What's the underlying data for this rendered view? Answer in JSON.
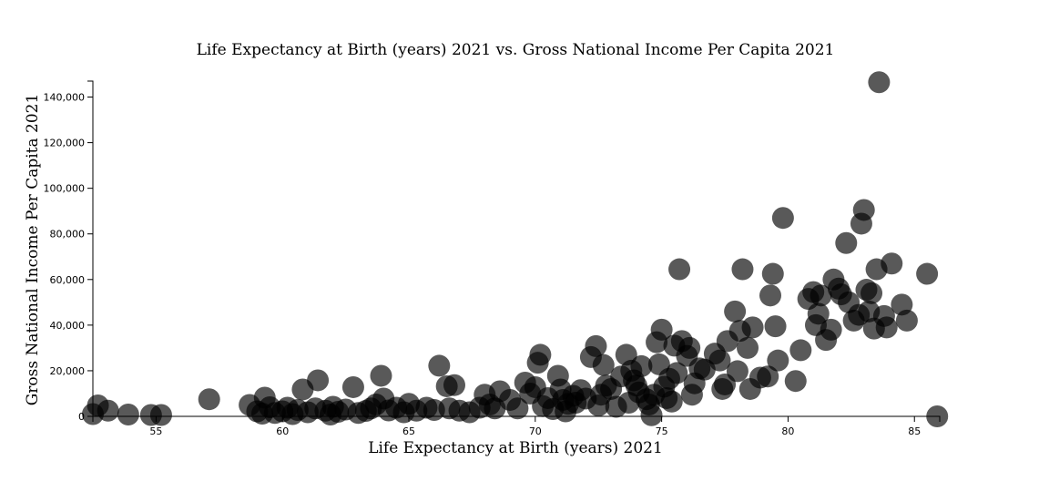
{
  "chart_data": {
    "type": "scatter",
    "title": "Life Expectancy at Birth (years) 2021 vs. Gross National Income Per Capita 2021",
    "xlabel": "Life Expectancy at Birth (years) 2021",
    "ylabel": "Gross National Income Per Capita 2021",
    "xlim": [
      52.5,
      86
    ],
    "ylim": [
      0,
      147000
    ],
    "x_ticks": [
      55,
      60,
      65,
      70,
      75,
      80,
      85
    ],
    "x_tick_labels": [
      "55",
      "60",
      "65",
      "70",
      "75",
      "80",
      "85"
    ],
    "y_ticks": [
      0,
      20000,
      40000,
      60000,
      80000,
      100000,
      120000,
      140000
    ],
    "y_tick_labels": [
      "0",
      "20,000",
      "40,000",
      "60,000",
      "80,000",
      "100,000",
      "120,000",
      "140,000"
    ],
    "grid": false,
    "marker_color": "#000000",
    "marker_opacity": 0.65,
    "points": [
      {
        "x": 52.5,
        "y": 1000
      },
      {
        "x": 52.7,
        "y": 4800
      },
      {
        "x": 53.1,
        "y": 2500
      },
      {
        "x": 53.9,
        "y": 800
      },
      {
        "x": 54.8,
        "y": 600
      },
      {
        "x": 55.2,
        "y": 600
      },
      {
        "x": 57.1,
        "y": 7500
      },
      {
        "x": 58.7,
        "y": 5000
      },
      {
        "x": 59.0,
        "y": 2200
      },
      {
        "x": 59.2,
        "y": 1200
      },
      {
        "x": 59.3,
        "y": 8200
      },
      {
        "x": 59.5,
        "y": 4000
      },
      {
        "x": 59.7,
        "y": 1500
      },
      {
        "x": 60.0,
        "y": 2200
      },
      {
        "x": 60.2,
        "y": 3800
      },
      {
        "x": 60.4,
        "y": 1000
      },
      {
        "x": 60.6,
        "y": 2800
      },
      {
        "x": 60.8,
        "y": 11800
      },
      {
        "x": 61.0,
        "y": 1800
      },
      {
        "x": 61.3,
        "y": 3500
      },
      {
        "x": 61.4,
        "y": 15800
      },
      {
        "x": 61.7,
        "y": 2500
      },
      {
        "x": 61.9,
        "y": 800
      },
      {
        "x": 62.0,
        "y": 4200
      },
      {
        "x": 62.2,
        "y": 2000
      },
      {
        "x": 62.5,
        "y": 3000
      },
      {
        "x": 62.8,
        "y": 12800
      },
      {
        "x": 63.0,
        "y": 1500
      },
      {
        "x": 63.3,
        "y": 2400
      },
      {
        "x": 63.5,
        "y": 3500
      },
      {
        "x": 63.7,
        "y": 5200
      },
      {
        "x": 63.9,
        "y": 17800
      },
      {
        "x": 64.0,
        "y": 7800
      },
      {
        "x": 64.2,
        "y": 2600
      },
      {
        "x": 64.5,
        "y": 3800
      },
      {
        "x": 64.8,
        "y": 1800
      },
      {
        "x": 65.0,
        "y": 5500
      },
      {
        "x": 65.3,
        "y": 2500
      },
      {
        "x": 65.7,
        "y": 3800
      },
      {
        "x": 66.0,
        "y": 2800
      },
      {
        "x": 66.2,
        "y": 22200
      },
      {
        "x": 66.5,
        "y": 13200
      },
      {
        "x": 66.6,
        "y": 3500
      },
      {
        "x": 66.8,
        "y": 13700
      },
      {
        "x": 67.0,
        "y": 2500
      },
      {
        "x": 67.4,
        "y": 1800
      },
      {
        "x": 67.8,
        "y": 3800
      },
      {
        "x": 68.0,
        "y": 9500
      },
      {
        "x": 68.2,
        "y": 5200
      },
      {
        "x": 68.4,
        "y": 3500
      },
      {
        "x": 68.6,
        "y": 11000
      },
      {
        "x": 69.0,
        "y": 7200
      },
      {
        "x": 69.3,
        "y": 3500
      },
      {
        "x": 69.6,
        "y": 14800
      },
      {
        "x": 69.8,
        "y": 10000
      },
      {
        "x": 70.0,
        "y": 12800
      },
      {
        "x": 70.1,
        "y": 23500
      },
      {
        "x": 70.2,
        "y": 27000
      },
      {
        "x": 70.3,
        "y": 4500
      },
      {
        "x": 70.5,
        "y": 8000
      },
      {
        "x": 70.7,
        "y": 3200
      },
      {
        "x": 70.9,
        "y": 17800
      },
      {
        "x": 71.0,
        "y": 11800
      },
      {
        "x": 71.1,
        "y": 7200
      },
      {
        "x": 71.2,
        "y": 2200
      },
      {
        "x": 71.3,
        "y": 5500
      },
      {
        "x": 71.5,
        "y": 9000
      },
      {
        "x": 71.6,
        "y": 6000
      },
      {
        "x": 71.8,
        "y": 11500
      },
      {
        "x": 72.0,
        "y": 7800
      },
      {
        "x": 72.2,
        "y": 26000
      },
      {
        "x": 72.4,
        "y": 30800
      },
      {
        "x": 72.5,
        "y": 4800
      },
      {
        "x": 72.6,
        "y": 9500
      },
      {
        "x": 72.7,
        "y": 22500
      },
      {
        "x": 72.8,
        "y": 13500
      },
      {
        "x": 73.0,
        "y": 12000
      },
      {
        "x": 73.2,
        "y": 4200
      },
      {
        "x": 73.4,
        "y": 17500
      },
      {
        "x": 73.6,
        "y": 27000
      },
      {
        "x": 73.7,
        "y": 6000
      },
      {
        "x": 73.8,
        "y": 20000
      },
      {
        "x": 73.9,
        "y": 15800
      },
      {
        "x": 74.0,
        "y": 13500
      },
      {
        "x": 74.1,
        "y": 10500
      },
      {
        "x": 74.2,
        "y": 22000
      },
      {
        "x": 74.4,
        "y": 7500
      },
      {
        "x": 74.5,
        "y": 5200
      },
      {
        "x": 74.6,
        "y": 500
      },
      {
        "x": 74.7,
        "y": 9500
      },
      {
        "x": 74.8,
        "y": 32500
      },
      {
        "x": 74.9,
        "y": 22800
      },
      {
        "x": 75.0,
        "y": 38000
      },
      {
        "x": 75.1,
        "y": 13000
      },
      {
        "x": 75.2,
        "y": 8000
      },
      {
        "x": 75.3,
        "y": 16500
      },
      {
        "x": 75.4,
        "y": 6500
      },
      {
        "x": 75.5,
        "y": 31000
      },
      {
        "x": 75.6,
        "y": 19000
      },
      {
        "x": 75.7,
        "y": 64500
      },
      {
        "x": 75.8,
        "y": 33000
      },
      {
        "x": 76.0,
        "y": 26500
      },
      {
        "x": 76.1,
        "y": 30000
      },
      {
        "x": 76.2,
        "y": 9500
      },
      {
        "x": 76.3,
        "y": 14500
      },
      {
        "x": 76.5,
        "y": 21000
      },
      {
        "x": 76.7,
        "y": 20500
      },
      {
        "x": 77.1,
        "y": 27500
      },
      {
        "x": 77.3,
        "y": 24500
      },
      {
        "x": 77.4,
        "y": 12000
      },
      {
        "x": 77.5,
        "y": 14000
      },
      {
        "x": 77.6,
        "y": 33000
      },
      {
        "x": 77.9,
        "y": 46000
      },
      {
        "x": 78.0,
        "y": 19800
      },
      {
        "x": 78.1,
        "y": 37500
      },
      {
        "x": 78.2,
        "y": 64500
      },
      {
        "x": 78.4,
        "y": 30000
      },
      {
        "x": 78.5,
        "y": 12000
      },
      {
        "x": 78.6,
        "y": 39000
      },
      {
        "x": 78.9,
        "y": 17000
      },
      {
        "x": 79.2,
        "y": 17500
      },
      {
        "x": 79.3,
        "y": 53000
      },
      {
        "x": 79.4,
        "y": 62500
      },
      {
        "x": 79.5,
        "y": 39500
      },
      {
        "x": 79.6,
        "y": 24500
      },
      {
        "x": 79.8,
        "y": 87000
      },
      {
        "x": 80.3,
        "y": 15500
      },
      {
        "x": 80.5,
        "y": 29000
      },
      {
        "x": 80.8,
        "y": 51500
      },
      {
        "x": 81.0,
        "y": 54500
      },
      {
        "x": 81.1,
        "y": 40000
      },
      {
        "x": 81.2,
        "y": 45000
      },
      {
        "x": 81.3,
        "y": 53000
      },
      {
        "x": 81.5,
        "y": 33500
      },
      {
        "x": 81.7,
        "y": 38000
      },
      {
        "x": 81.8,
        "y": 60000
      },
      {
        "x": 82.0,
        "y": 56000
      },
      {
        "x": 82.1,
        "y": 53500
      },
      {
        "x": 82.3,
        "y": 76000
      },
      {
        "x": 82.4,
        "y": 50000
      },
      {
        "x": 82.6,
        "y": 42000
      },
      {
        "x": 82.8,
        "y": 44500
      },
      {
        "x": 82.9,
        "y": 84500
      },
      {
        "x": 83.0,
        "y": 90500
      },
      {
        "x": 83.1,
        "y": 55500
      },
      {
        "x": 83.2,
        "y": 46000
      },
      {
        "x": 83.3,
        "y": 54000
      },
      {
        "x": 83.4,
        "y": 38500
      },
      {
        "x": 83.5,
        "y": 64500
      },
      {
        "x": 83.6,
        "y": 146500
      },
      {
        "x": 83.8,
        "y": 44000
      },
      {
        "x": 83.9,
        "y": 39000
      },
      {
        "x": 84.1,
        "y": 67000
      },
      {
        "x": 84.5,
        "y": 49000
      },
      {
        "x": 84.7,
        "y": 42000
      },
      {
        "x": 85.5,
        "y": 62500
      },
      {
        "x": 85.9,
        "y": 0
      }
    ]
  }
}
